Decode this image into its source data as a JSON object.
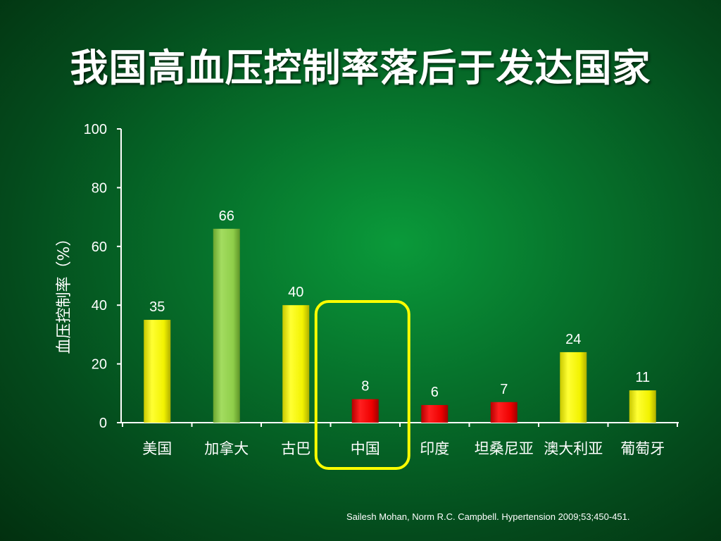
{
  "slide": {
    "title": "我国高血压控制率落后于发达国家",
    "citation": "Sailesh Mohan, Norm R.C. Campbell. Hypertension 2009;53;450-451."
  },
  "colors": {
    "bar_default": "#ffff00",
    "bar_green": "#8fce4a",
    "bar_red": "#ee0000",
    "highlight_box": "#ffff00",
    "text": "#ffffff"
  },
  "chart_data": {
    "type": "bar",
    "categories": [
      "美国",
      "加拿大",
      "古巴",
      "中国",
      "印度",
      "坦桑尼亚",
      "澳大利亚",
      "葡萄牙"
    ],
    "values": [
      35,
      66,
      40,
      8,
      6,
      7,
      24,
      11
    ],
    "bar_colors": [
      "yellow",
      "green",
      "yellow",
      "red",
      "red",
      "red",
      "yellow",
      "yellow"
    ],
    "data_labels": [
      "35",
      "66",
      "40",
      "8",
      "6",
      "7",
      "24",
      "11"
    ],
    "title": "",
    "xlabel": "",
    "ylabel": "血压控制率（%）",
    "ylim": [
      0,
      100
    ],
    "yticks": [
      0,
      20,
      40,
      60,
      80,
      100
    ],
    "grid": false,
    "legend": "none",
    "highlight_category": "中国"
  }
}
